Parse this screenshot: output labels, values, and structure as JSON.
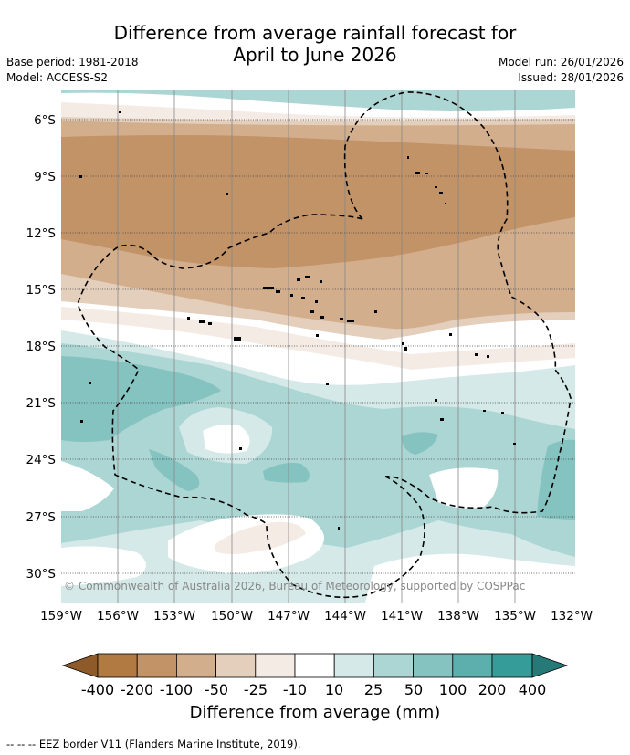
{
  "title": {
    "line1": "Difference from average rainfall forecast for",
    "line2": "April to June 2026"
  },
  "meta": {
    "base_period": "Base period: 1981-2018",
    "model": "Model: ACCESS-S2",
    "model_run": "Model run: 26/01/2026",
    "issued": "Issued: 28/01/2026"
  },
  "map": {
    "lat_labels": [
      "6°S",
      "9°S",
      "12°S",
      "15°S",
      "18°S",
      "21°S",
      "24°S",
      "27°S",
      "30°S"
    ],
    "lon_labels": [
      "159°W",
      "156°W",
      "153°W",
      "150°W",
      "147°W",
      "144°W",
      "141°W",
      "138°W",
      "135°W",
      "132°W"
    ],
    "copyright": "© Commonwealth of Australia 2026, Bureau of Meteorology, supported by COSPPac"
  },
  "colorbar": {
    "title": "Difference from average (mm)",
    "tick_labels": [
      "-400",
      "-200",
      "-100",
      "-50",
      "-25",
      "-10",
      "10",
      "25",
      "50",
      "100",
      "200",
      "400"
    ],
    "colors": {
      "lt_-400": "#8f5a2a",
      "-400_-200": "#b07a42",
      "-200_-100": "#c19367",
      "-100_-50": "#d3ae8d",
      "-50_-25": "#e4cfbc",
      "-25_-10": "#f4ebe5",
      "-10_10": "#ffffff",
      "10_25": "#d4e9e8",
      "25_50": "#acd6d4",
      "50_100": "#85c3c1",
      "100_200": "#5dafad",
      "200_400": "#359c99",
      "gt_400": "#257a78"
    }
  },
  "footnote": "--  --  -- EEZ border V11 (Flanders Marine Institute, 2019)."
}
